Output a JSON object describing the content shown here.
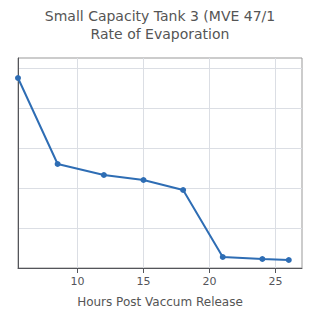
{
  "chart_data": {
    "type": "line",
    "title": "Small Capacity Tank 3 (MVE 47/1",
    "subtitle": "Rate of Evaporation",
    "x_label": "Hours Post Vaccum Release",
    "x": [
      5.5,
      8.5,
      12,
      15,
      18,
      21,
      24,
      26
    ],
    "values": [
      0.95,
      0.52,
      0.465,
      0.44,
      0.39,
      0.055,
      0.045,
      0.04
    ],
    "color": "#2e6db4",
    "marker": "circle",
    "xlim": [
      5.5,
      27
    ],
    "xticks": [
      10,
      15,
      20,
      25
    ],
    "ylim": [
      0,
      1.05
    ],
    "yticks": [
      0.2,
      0.4,
      0.6,
      0.8,
      1.0
    ],
    "grid": true,
    "tick_labels": "x"
  }
}
